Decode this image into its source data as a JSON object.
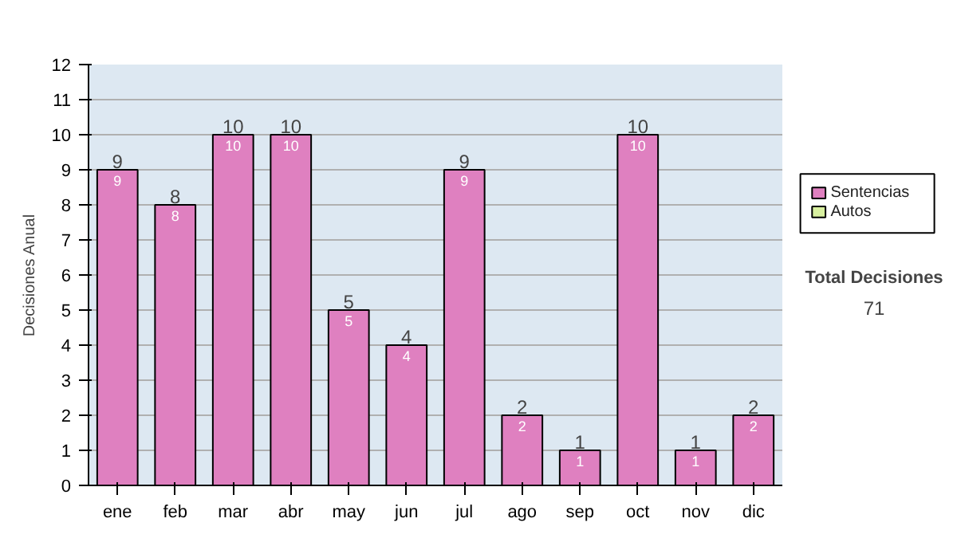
{
  "chart_data": {
    "type": "bar",
    "stacked": true,
    "ylabel": "Decisiones Anual",
    "categories": [
      "ene",
      "feb",
      "mar",
      "abr",
      "may",
      "jun",
      "jul",
      "ago",
      "sep",
      "oct",
      "nov",
      "dic"
    ],
    "series": [
      {
        "name": "Sentencias",
        "color": "#df80c0",
        "values": [
          9,
          8,
          10,
          10,
          5,
          4,
          9,
          2,
          1,
          10,
          1,
          2
        ]
      },
      {
        "name": "Autos",
        "color": "#d8f0a0",
        "values": [
          null,
          null,
          null,
          null,
          null,
          null,
          null,
          null,
          null,
          null,
          null,
          null
        ]
      }
    ],
    "ylim": [
      0,
      12
    ],
    "yticks": [
      0,
      1,
      2,
      3,
      4,
      5,
      6,
      7,
      8,
      9,
      10,
      11,
      12
    ],
    "grid": "y",
    "legend": "right",
    "data_labels": true,
    "totals": [
      "9",
      "8",
      "10",
      "10",
      "5",
      "4",
      "9",
      "2",
      "1",
      "10",
      "1",
      "2"
    ],
    "annotations": [
      "Total Decisiones",
      "71"
    ]
  }
}
